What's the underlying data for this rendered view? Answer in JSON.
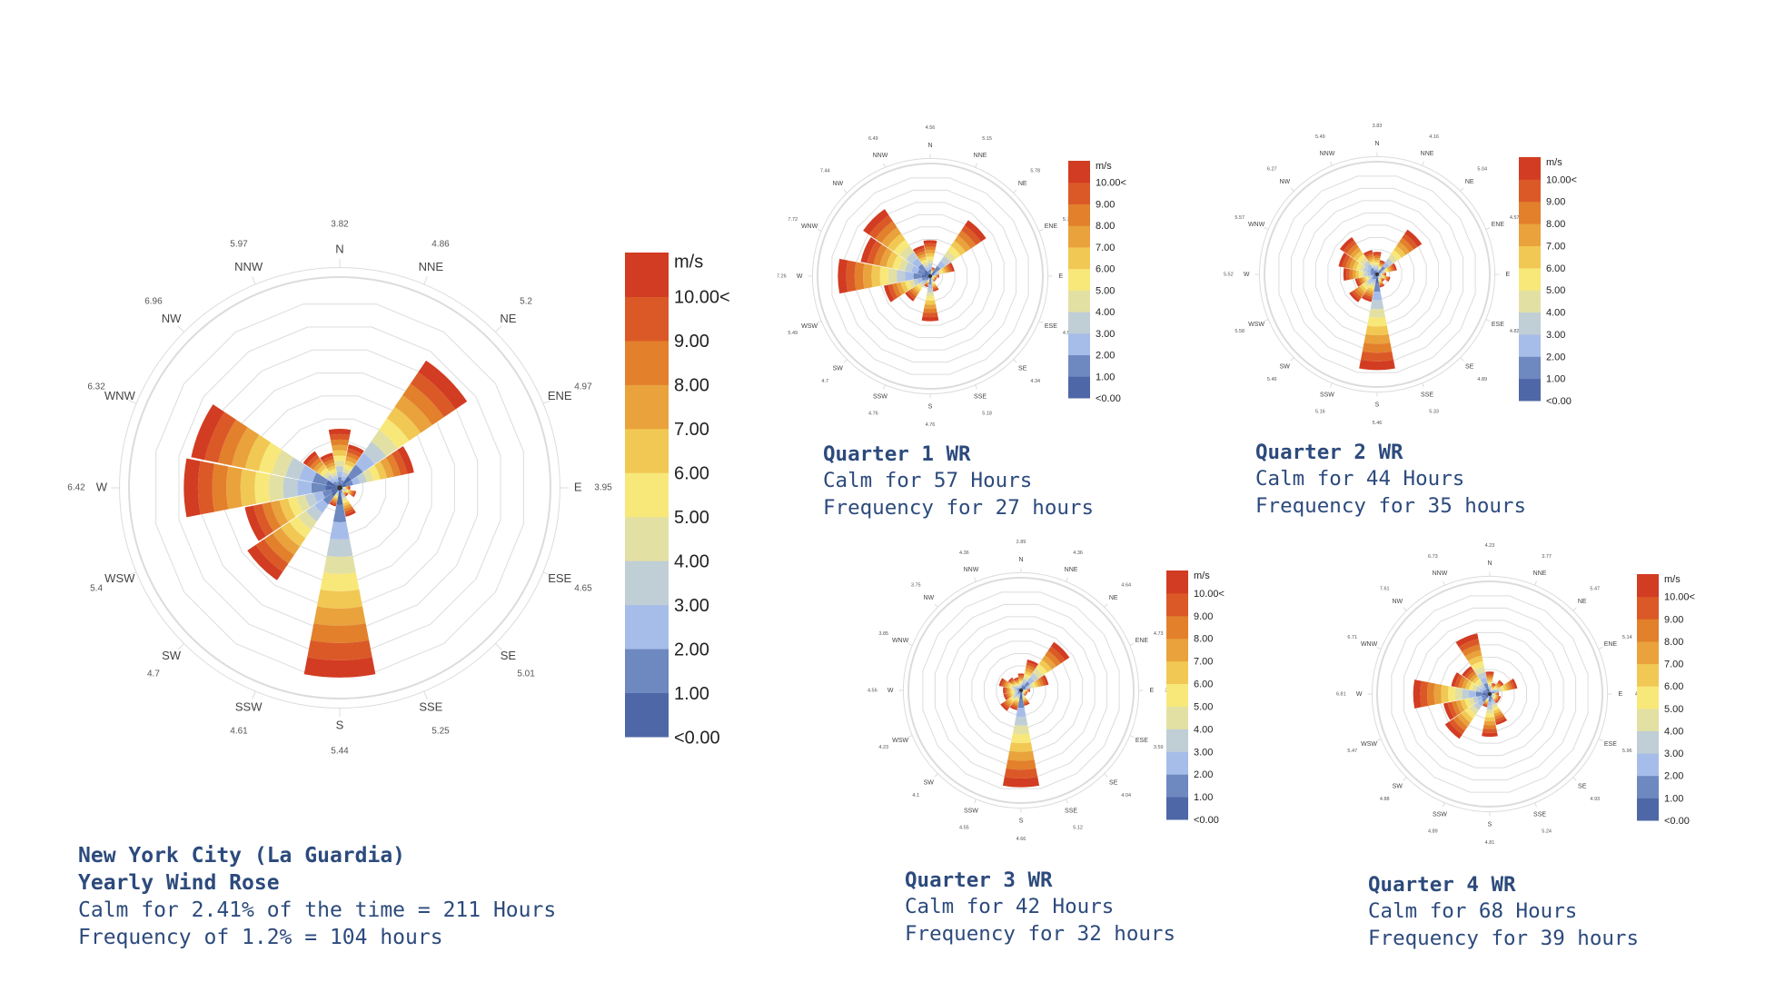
{
  "colors": {
    "scale": [
      "#4e67a6",
      "#6e88c0",
      "#a7bde9",
      "#c0ced6",
      "#e3e0a4",
      "#f8e87a",
      "#f1c853",
      "#e9a23c",
      "#e2802c",
      "#db5927",
      "#d23c22"
    ],
    "grid": "#dcdcdc",
    "caption": "#2c4a7c"
  },
  "captions": {
    "main": {
      "line1": "New York City (La Guardia)",
      "line2": "Yearly Wind Rose",
      "line3": "Calm for 2.41% of the time = 211 Hours",
      "line4": "Frequency of 1.2% = 104 hours"
    },
    "q1": {
      "title": "Quarter 1 WR",
      "calm": "Calm for 57 Hours",
      "freq": "Frequency for 27 hours"
    },
    "q2": {
      "title": "Quarter 2 WR",
      "calm": "Calm for 44 Hours",
      "freq": "Frequency for 35 hours"
    },
    "q3": {
      "title": "Quarter 3 WR",
      "calm": "Calm for 42 Hours",
      "freq": "Frequency for 32 hours"
    },
    "q4": {
      "title": "Quarter 4 WR",
      "calm": "Calm for 68 Hours",
      "freq": "Frequency for 39 hours"
    }
  },
  "chart_data": [
    {
      "id": "main",
      "type": "wind-rose",
      "unit": "m/s",
      "legend_labels": [
        "<0.00",
        "1.00",
        "2.00",
        "3.00",
        "4.00",
        "5.00",
        "6.00",
        "7.00",
        "8.00",
        "9.00",
        "10.00<"
      ],
      "directions": [
        "N",
        "NNE",
        "NE",
        "ENE",
        "E",
        "ESE",
        "SE",
        "SSE",
        "S",
        "SSW",
        "SW",
        "WSW",
        "W",
        "WNW",
        "NW",
        "NNW"
      ],
      "direction_values": [
        "3.82",
        "4.86",
        "5.2",
        "4.97",
        "3.95",
        "4.65",
        "5.01",
        "5.25",
        "5.44",
        "4.61",
        "4.7",
        "5.4",
        "6.42",
        "6.32",
        "6.96",
        "5.97"
      ],
      "petal_lengths": [
        0.28,
        0.21,
        0.73,
        0.36,
        0.05,
        0.08,
        0.05,
        0.14,
        0.9,
        0.09,
        0.53,
        0.46,
        0.74,
        0.72,
        0.21,
        0.17
      ]
    },
    {
      "id": "q1",
      "type": "wind-rose",
      "unit": "m/s",
      "legend_labels": [
        "<0.00",
        "1.00",
        "2.00",
        "3.00",
        "4.00",
        "5.00",
        "6.00",
        "7.00",
        "8.00",
        "9.00",
        "10.00<"
      ],
      "directions": [
        "N",
        "NNE",
        "NE",
        "ENE",
        "E",
        "ESE",
        "SE",
        "SSE",
        "S",
        "SSW",
        "SW",
        "WSW",
        "W",
        "WNW",
        "NW",
        "NNW"
      ],
      "direction_values": [
        "4.56",
        "5.15",
        "5.78",
        "5.75",
        "3.71",
        "4.54",
        "4.34",
        "5.18",
        "4.76",
        "4.76",
        "4.7",
        "5.49",
        "7.26",
        "7.72",
        "7.44",
        "6.49"
      ],
      "petal_lengths": [
        0.32,
        0.08,
        0.6,
        0.22,
        0.08,
        0.06,
        0.06,
        0.14,
        0.4,
        0.1,
        0.27,
        0.42,
        0.82,
        0.63,
        0.72,
        0.28
      ]
    },
    {
      "id": "q2",
      "type": "wind-rose",
      "unit": "m/s",
      "legend_labels": [
        "<0.00",
        "1.00",
        "2.00",
        "3.00",
        "4.00",
        "5.00",
        "6.00",
        "7.00",
        "8.00",
        "9.00",
        "10.00<"
      ],
      "directions": [
        "N",
        "NNE",
        "NE",
        "ENE",
        "E",
        "ESE",
        "SE",
        "SSE",
        "S",
        "SSW",
        "SW",
        "WSW",
        "W",
        "WNW",
        "NW",
        "NNW"
      ],
      "direction_values": [
        "3.83",
        "4.16",
        "5.04",
        "4.57",
        "4.23",
        "4.82",
        "4.89",
        "5.33",
        "5.46",
        "5.16",
        "5.46",
        "5.58",
        "5.52",
        "5.57",
        "6.27",
        "5.49"
      ],
      "petal_lengths": [
        0.2,
        0.13,
        0.48,
        0.18,
        0.08,
        0.12,
        0.08,
        0.12,
        0.85,
        0.25,
        0.3,
        0.2,
        0.3,
        0.35,
        0.4,
        0.22
      ]
    },
    {
      "id": "q3",
      "type": "wind-rose",
      "unit": "m/s",
      "legend_labels": [
        "<0.00",
        "1.00",
        "2.00",
        "3.00",
        "4.00",
        "5.00",
        "6.00",
        "7.00",
        "8.00",
        "9.00",
        "10.00<"
      ],
      "directions": [
        "N",
        "NNE",
        "NE",
        "ENE",
        "E",
        "ESE",
        "SE",
        "SSE",
        "S",
        "SSW",
        "SW",
        "WSW",
        "W",
        "WNW",
        "NW",
        "NNW"
      ],
      "direction_values": [
        "2.89",
        "4.36",
        "4.64",
        "4.73",
        "3.29",
        "3.59",
        "4.04",
        "5.12",
        "4.66",
        "4.55",
        "4.1",
        "4.23",
        "4.56",
        "3.85",
        "3.75",
        "4.36"
      ],
      "petal_lengths": [
        0.15,
        0.28,
        0.52,
        0.25,
        0.08,
        0.06,
        0.06,
        0.14,
        0.86,
        0.18,
        0.22,
        0.16,
        0.16,
        0.2,
        0.14,
        0.12
      ]
    },
    {
      "id": "q4",
      "type": "wind-rose",
      "unit": "m/s",
      "legend_labels": [
        "<0.00",
        "1.00",
        "2.00",
        "3.00",
        "4.00",
        "5.00",
        "6.00",
        "7.00",
        "8.00",
        "9.00",
        "10.00<"
      ],
      "directions": [
        "N",
        "NNE",
        "NE",
        "ENE",
        "E",
        "ESE",
        "SE",
        "SSE",
        "S",
        "SSW",
        "SW",
        "WSW",
        "W",
        "WNW",
        "NW",
        "NNW"
      ],
      "direction_values": [
        "4.23",
        "3.77",
        "5.47",
        "5.14",
        "4.4",
        "5.96",
        "4.93",
        "5.24",
        "4.81",
        "4.89",
        "4.88",
        "5.47",
        "6.81",
        "6.71",
        "7.61",
        "6.73"
      ],
      "petal_lengths": [
        0.2,
        0.1,
        0.15,
        0.25,
        0.08,
        0.1,
        0.1,
        0.28,
        0.38,
        0.12,
        0.48,
        0.42,
        0.68,
        0.35,
        0.3,
        0.55
      ]
    }
  ]
}
